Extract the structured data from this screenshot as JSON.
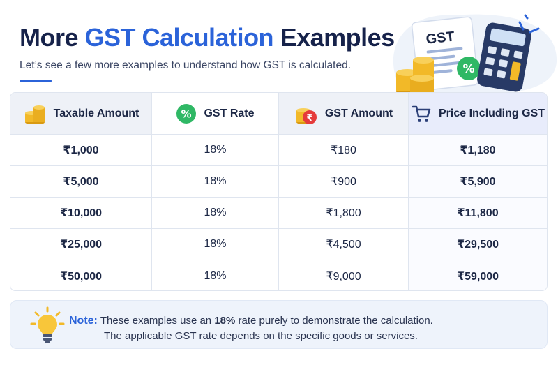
{
  "header": {
    "title_pre": "More ",
    "title_accent": "GST Calculation",
    "title_post": " Examples",
    "subtitle": "Let’s see a few more examples to understand how GST is calculated."
  },
  "illustration": {
    "doc_label": "GST",
    "badge_symbol": "%"
  },
  "table": {
    "columns": [
      {
        "label": "Taxable Amount",
        "icon": "coins-icon"
      },
      {
        "label": "GST Rate",
        "icon": "percent-badge-icon"
      },
      {
        "label": "GST Amount",
        "icon": "rupee-coins-icon"
      },
      {
        "label": "Price Including GST",
        "icon": "shopping-cart-icon"
      }
    ],
    "rows": [
      {
        "taxable": "₹1,000",
        "rate": "18%",
        "gst": "₹180",
        "total": "₹1,180"
      },
      {
        "taxable": "₹5,000",
        "rate": "18%",
        "gst": "₹900",
        "total": "₹5,900"
      },
      {
        "taxable": "₹10,000",
        "rate": "18%",
        "gst": "₹1,800",
        "total": "₹11,800"
      },
      {
        "taxable": "₹25,000",
        "rate": "18%",
        "gst": "₹4,500",
        "total": "₹29,500"
      },
      {
        "taxable": "₹50,000",
        "rate": "18%",
        "gst": "₹9,000",
        "total": "₹59,000"
      }
    ]
  },
  "note": {
    "label": "Note:",
    "line1_pre": "These examples use an ",
    "line1_bold": "18%",
    "line1_post": " rate purely to demonstrate the calculation.",
    "line2": "The applicable GST rate depends on the specific goods or services.",
    "icon": "lightbulb-icon"
  },
  "colors": {
    "accent": "#2b63d9",
    "navy": "#16224a",
    "green": "#2fb865",
    "red": "#e53b3b",
    "gold": "#f2b928"
  }
}
